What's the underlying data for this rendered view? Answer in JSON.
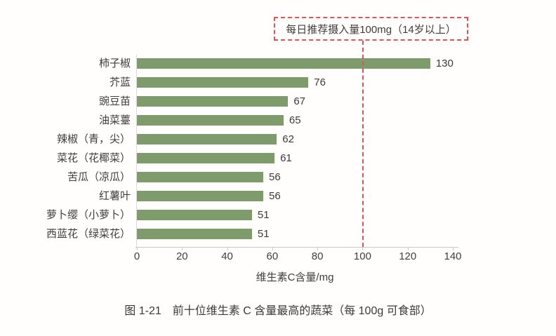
{
  "chart_data": {
    "type": "bar",
    "orientation": "horizontal",
    "categories": [
      "柿子椒",
      "芥蓝",
      "豌豆苗",
      "油菜薹",
      "辣椒（青，尖）",
      "菜花（花椰菜）",
      "苦瓜（凉瓜）",
      "红薯叶",
      "萝卜缨（小萝卜）",
      "西蓝花（绿菜花）"
    ],
    "values": [
      130,
      76,
      67,
      65,
      62,
      61,
      56,
      56,
      51,
      51
    ],
    "xlabel": "维生素C含量/mg",
    "xlim": [
      0,
      140
    ],
    "xticks": [
      0,
      20,
      40,
      60,
      80,
      100,
      120,
      140
    ],
    "grid": false,
    "value_labels": true,
    "bar_color": "#7e9b6c",
    "reference_line": {
      "value": 100,
      "label": "每日推荐摄入量100mg（14岁以上）",
      "color": "#e25252",
      "style": "dashed"
    }
  },
  "caption": "图 1-21　前十位维生素 C 含量最高的蔬菜（每 100g 可食部）"
}
